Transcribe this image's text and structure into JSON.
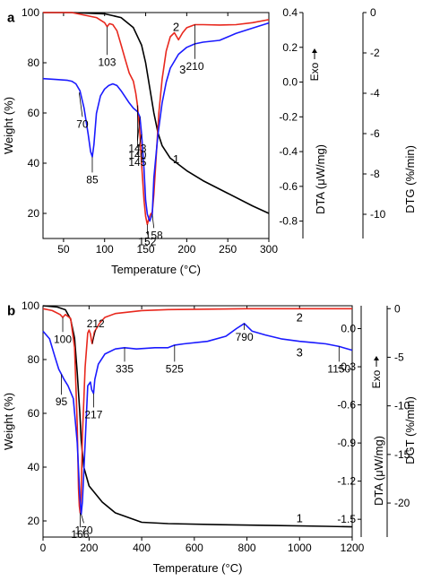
{
  "chart_data": [
    {
      "panel": "a",
      "type": "line",
      "xlabel": "Temperature (°C)",
      "xlim": [
        25,
        300
      ],
      "xticks": [
        50,
        100,
        150,
        200,
        250,
        300
      ],
      "axes": {
        "weight": {
          "label": "Weight (%)",
          "lim": [
            10,
            100
          ],
          "ticks": [
            20,
            40,
            60,
            80,
            100
          ]
        },
        "dta": {
          "label": "DTA (μW/mg)",
          "lim": [
            -0.9,
            0.4
          ],
          "ticks": [
            "0.4",
            "0.2",
            "0.0",
            "-0.2",
            "-0.4",
            "-0.6",
            "-0.8"
          ]
        },
        "dtg": {
          "label": "DTG (%/min)",
          "lim": [
            -11.2,
            0
          ],
          "ticks": [
            "0",
            "-2",
            "-4",
            "-6",
            "-8",
            "-10"
          ]
        }
      },
      "exo_label": "Exo",
      "series": [
        {
          "curve_number": "1",
          "axis": "weight",
          "color": "#000000",
          "x": [
            25,
            60,
            100,
            120,
            135,
            145,
            150,
            155,
            160,
            165,
            170,
            180,
            200,
            220,
            250,
            280,
            300
          ],
          "y": [
            100,
            100,
            99.5,
            98,
            94,
            87,
            80,
            70,
            60,
            52,
            47,
            42,
            37,
            33,
            28,
            23,
            20
          ]
        },
        {
          "curve_number": "2",
          "axis": "dtg",
          "color": "#e8281e",
          "x": [
            25,
            60,
            90,
            100,
            103,
            106,
            110,
            115,
            120,
            125,
            130,
            135,
            138,
            140,
            143,
            145,
            148,
            150,
            152,
            154,
            156,
            158,
            160,
            163,
            166,
            170,
            175,
            180,
            185,
            190,
            195,
            200,
            210,
            220,
            240,
            260,
            280,
            300
          ],
          "y": [
            0,
            0,
            -0.25,
            -0.5,
            -0.7,
            -0.55,
            -0.6,
            -0.9,
            -1.6,
            -2.3,
            -3.0,
            -3.4,
            -4.0,
            -4.6,
            -6.0,
            -7.5,
            -9.3,
            -10.1,
            -10.5,
            -10.2,
            -10.0,
            -9.9,
            -9.0,
            -7.0,
            -5.0,
            -3.3,
            -1.9,
            -1.2,
            -1.0,
            -1.35,
            -1.0,
            -0.75,
            -0.6,
            -0.6,
            -0.62,
            -0.6,
            -0.5,
            -0.35
          ]
        },
        {
          "curve_number": "3",
          "axis": "dta",
          "color": "#1a1aff",
          "x": [
            25,
            40,
            55,
            60,
            65,
            70,
            75,
            80,
            83,
            85,
            87,
            90,
            95,
            100,
            105,
            110,
            115,
            120,
            130,
            135,
            140,
            143,
            145,
            148,
            150,
            152,
            155,
            158,
            160,
            165,
            170,
            175,
            180,
            190,
            200,
            210,
            220,
            240,
            250,
            260,
            280,
            300
          ],
          "y": [
            0.02,
            0.015,
            0.01,
            0.005,
            -0.01,
            -0.05,
            -0.15,
            -0.3,
            -0.4,
            -0.43,
            -0.36,
            -0.18,
            -0.08,
            -0.04,
            -0.02,
            -0.01,
            -0.02,
            -0.05,
            -0.12,
            -0.15,
            -0.17,
            -0.2,
            -0.3,
            -0.5,
            -0.68,
            -0.76,
            -0.8,
            -0.76,
            -0.55,
            -0.3,
            -0.12,
            0.0,
            0.08,
            0.16,
            0.2,
            0.22,
            0.23,
            0.24,
            0.26,
            0.28,
            0.31,
            0.34
          ]
        }
      ],
      "annotations": [
        {
          "text": "103",
          "axis": "dtg",
          "at": [
            103,
            -0.7
          ],
          "to": [
            103,
            -2.1
          ]
        },
        {
          "text": "140",
          "axis": "dtg",
          "at": [
            140,
            -4.6
          ],
          "to": [
            140,
            -6.7
          ]
        },
        {
          "text": "210",
          "axis": "dtg",
          "at": [
            210,
            -0.6
          ],
          "to": [
            210,
            -2.3
          ]
        },
        {
          "text": "70",
          "axis": "dta",
          "at": [
            69,
            -0.06
          ],
          "to": [
            73,
            -0.2
          ]
        },
        {
          "text": "85",
          "axis": "dta",
          "at": [
            85,
            -0.43
          ],
          "to": [
            85,
            -0.52
          ]
        },
        {
          "text": "143",
          "axis": "dta",
          "at": [
            143,
            -0.2
          ],
          "to": [
            140,
            -0.34
          ]
        },
        {
          "text": "145",
          "axis": "dta",
          "at": [
            145,
            -0.3
          ],
          "to": [
            140,
            -0.42
          ]
        },
        {
          "text": "152",
          "axis": "dtg",
          "at": [
            152,
            -10.5
          ],
          "to": [
            152,
            -11.0
          ]
        },
        {
          "text": "158",
          "axis": "dta",
          "at": [
            158,
            -0.76
          ],
          "to": [
            160,
            -0.84
          ]
        }
      ],
      "curve_labels": [
        {
          "text": "1",
          "axis": "weight",
          "at": [
            187,
            40
          ]
        },
        {
          "text": "2",
          "axis": "dtg",
          "at": [
            187,
            -0.9
          ]
        },
        {
          "text": "3",
          "axis": "dta",
          "at": [
            195,
            0.05
          ]
        }
      ]
    },
    {
      "panel": "b",
      "type": "line",
      "xlabel": "Temperature (°C)",
      "xlim": [
        25,
        1200
      ],
      "xticks": [
        0,
        200,
        400,
        600,
        800,
        1000,
        1200
      ],
      "axes": {
        "weight": {
          "label": "Weight (%)",
          "lim": [
            14,
            100
          ],
          "ticks": [
            20,
            40,
            60,
            80,
            100
          ]
        },
        "dta": {
          "label": "DTA (μW/mg)",
          "lim": [
            -1.64,
            0.18
          ],
          "ticks": [
            "0.0",
            "-0.3",
            "-0.6",
            "-0.9",
            "-1.2",
            "-1.5"
          ]
        },
        "dtg": {
          "label": "DGT (%/min)",
          "lim": [
            -23.5,
            0.3
          ],
          "ticks": [
            "0",
            "-5",
            "-10",
            "-15",
            "-20"
          ]
        }
      },
      "exo_label": "Exo",
      "series": [
        {
          "curve_number": "1",
          "axis": "weight",
          "color": "#000000",
          "x": [
            25,
            80,
            110,
            130,
            145,
            155,
            165,
            170,
            180,
            200,
            250,
            300,
            400,
            500,
            700,
            900,
            1100,
            1200
          ],
          "y": [
            100,
            99.5,
            98.5,
            95,
            88,
            75,
            60,
            50,
            40,
            33,
            27,
            23,
            19.5,
            19,
            18.6,
            18.3,
            18,
            17.8
          ]
        },
        {
          "curve_number": "2",
          "axis": "dtg",
          "color": "#e8281e",
          "x": [
            25,
            60,
            90,
            100,
            110,
            130,
            145,
            155,
            160,
            163,
            166,
            170,
            175,
            185,
            195,
            200,
            205,
            210,
            212,
            220,
            240,
            260,
            300,
            400,
            500,
            800,
            1000,
            1200
          ],
          "y": [
            0,
            -0.2,
            -0.6,
            -0.9,
            -0.6,
            -1.0,
            -4.0,
            -12.0,
            -18.5,
            -20.3,
            -21.0,
            -19.0,
            -13.0,
            -6.0,
            -2.5,
            -2.2,
            -2.6,
            -3.4,
            -3.6,
            -2.4,
            -1.5,
            -0.9,
            -0.5,
            -0.2,
            -0.1,
            0,
            0,
            0
          ]
        },
        {
          "curve_number": "3",
          "axis": "dta",
          "color": "#1a1aff",
          "x": [
            25,
            50,
            70,
            85,
            95,
            105,
            120,
            140,
            155,
            165,
            170,
            175,
            185,
            195,
            205,
            210,
            217,
            222,
            235,
            260,
            300,
            335,
            380,
            450,
            500,
            525,
            560,
            650,
            720,
            760,
            790,
            820,
            870,
            930,
            1000,
            1050,
            1100,
            1150,
            1200
          ],
          "y": [
            -0.02,
            -0.08,
            -0.22,
            -0.32,
            -0.36,
            -0.4,
            -0.45,
            -0.55,
            -0.9,
            -1.32,
            -1.46,
            -1.36,
            -0.9,
            -0.45,
            -0.42,
            -0.48,
            -0.51,
            -0.4,
            -0.28,
            -0.2,
            -0.16,
            -0.15,
            -0.16,
            -0.15,
            -0.15,
            -0.13,
            -0.12,
            -0.1,
            -0.06,
            0.0,
            0.04,
            -0.02,
            -0.05,
            -0.08,
            -0.1,
            -0.11,
            -0.12,
            -0.14,
            -0.17
          ]
        }
      ],
      "annotations": [
        {
          "text": "100",
          "axis": "dtg",
          "at": [
            100,
            -0.9
          ],
          "to": [
            100,
            -2.4
          ]
        },
        {
          "text": "212",
          "axis": "dtg",
          "at": [
            212,
            -3.6
          ],
          "to": [
            225,
            -2.2
          ]
        },
        {
          "text": "95",
          "axis": "dta",
          "at": [
            95,
            -0.36
          ],
          "to": [
            95,
            -0.52
          ]
        },
        {
          "text": "217",
          "axis": "dta",
          "at": [
            217,
            -0.51
          ],
          "to": [
            217,
            -0.62
          ]
        },
        {
          "text": "335",
          "axis": "dta",
          "at": [
            335,
            -0.15
          ],
          "to": [
            335,
            -0.26
          ]
        },
        {
          "text": "525",
          "axis": "dta",
          "at": [
            525,
            -0.13
          ],
          "to": [
            525,
            -0.26
          ]
        },
        {
          "text": "790",
          "axis": "dta",
          "at": [
            790,
            0.04
          ],
          "to": [
            790,
            -0.01
          ]
        },
        {
          "text": "1150",
          "axis": "dta",
          "at": [
            1150,
            -0.14
          ],
          "to": [
            1150,
            -0.26
          ]
        },
        {
          "text": "166",
          "axis": "dtg",
          "at": [
            166,
            -21.0
          ],
          "to": [
            166,
            -22.5
          ]
        },
        {
          "text": "170",
          "axis": "dta",
          "at": [
            170,
            -1.46
          ],
          "to": [
            180,
            -1.53
          ]
        }
      ],
      "curve_labels": [
        {
          "text": "1",
          "axis": "weight",
          "at": [
            1000,
            19.5
          ]
        },
        {
          "text": "2",
          "axis": "dtg",
          "at": [
            1000,
            -1.3
          ]
        },
        {
          "text": "3",
          "axis": "dta",
          "at": [
            1000,
            -0.22
          ]
        }
      ]
    }
  ],
  "figure": {
    "panel_labels": [
      "a",
      "b"
    ]
  }
}
